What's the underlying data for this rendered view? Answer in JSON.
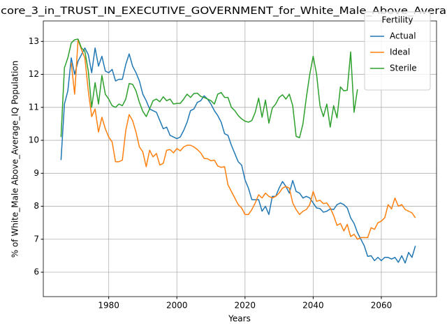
{
  "chart_data": {
    "type": "line",
    "title": "core_3_in_TRUST_IN_EXECUTIVE_GOVERNMENT_for_White_Male_Above_Avera",
    "xlabel": "Years",
    "ylabel": "% of White_Male Above_Average_IQ Population",
    "x": [
      1966,
      1967,
      1968,
      1969,
      1970,
      1971,
      1972,
      1973,
      1974,
      1975,
      1976,
      1977,
      1978,
      1979,
      1980,
      1981,
      1982,
      1983,
      1984,
      1985,
      1986,
      1987,
      1988,
      1989,
      1990,
      1991,
      1992,
      1993,
      1994,
      1995,
      1996,
      1997,
      1998,
      1999,
      2000,
      2001,
      2002,
      2003,
      2004,
      2005,
      2006,
      2007,
      2008,
      2009,
      2010,
      2011,
      2012,
      2013,
      2014,
      2015,
      2016,
      2017,
      2018,
      2019,
      2020,
      2021,
      2022,
      2023,
      2024,
      2025,
      2026,
      2027,
      2028,
      2029,
      2030,
      2031,
      2032,
      2033,
      2034,
      2035,
      2036,
      2037,
      2038,
      2039,
      2040,
      2041,
      2042,
      2043,
      2044,
      2045,
      2046,
      2047,
      2048,
      2049,
      2050,
      2051,
      2052,
      2053,
      2054,
      2055,
      2056,
      2057,
      2058,
      2059,
      2060,
      2061,
      2062,
      2063,
      2064,
      2065,
      2066,
      2067,
      2068,
      2069,
      2070
    ],
    "series": [
      {
        "name": "Actual",
        "color": "#1f77b4",
        "values": [
          9.4,
          11.1,
          11.5,
          12.5,
          12.0,
          12.4,
          12.6,
          12.8,
          12.6,
          12.05,
          12.8,
          12.25,
          12.55,
          12.1,
          12.05,
          12.15,
          11.8,
          11.85,
          11.85,
          12.3,
          12.62,
          12.25,
          12.05,
          11.8,
          11.4,
          11.2,
          10.95,
          10.9,
          10.85,
          10.6,
          10.35,
          10.4,
          10.15,
          10.1,
          10.05,
          10.1,
          10.3,
          10.55,
          10.9,
          10.95,
          11.15,
          11.2,
          11.35,
          11.25,
          11.1,
          10.9,
          10.75,
          10.55,
          10.2,
          10.15,
          9.85,
          9.6,
          9.35,
          9.25,
          8.8,
          8.55,
          8.2,
          8.2,
          8.2,
          7.85,
          8.0,
          7.75,
          8.3,
          8.3,
          8.55,
          8.75,
          8.6,
          8.4,
          8.78,
          8.45,
          8.4,
          8.25,
          8.3,
          8.25,
          8.1,
          7.95,
          7.93,
          7.82,
          7.85,
          7.92,
          7.9,
          8.05,
          8.1,
          8.05,
          7.95,
          7.65,
          7.48,
          7.2,
          7.0,
          6.8,
          6.48,
          6.5,
          6.35,
          6.45,
          6.35,
          6.45,
          6.45,
          6.4,
          6.45,
          6.3,
          6.5,
          6.28,
          6.6,
          6.45,
          6.8
        ]
      },
      {
        "name": "Ideal",
        "color": "#ff7f0e",
        "values": [
          null,
          null,
          null,
          12.35,
          11.4,
          13.05,
          12.75,
          12.5,
          11.5,
          10.72,
          10.95,
          10.25,
          10.7,
          10.35,
          10.1,
          9.95,
          9.35,
          9.35,
          9.4,
          10.3,
          10.78,
          10.6,
          10.25,
          9.8,
          9.65,
          9.2,
          9.7,
          9.5,
          9.6,
          9.25,
          9.3,
          9.7,
          9.72,
          9.62,
          9.75,
          9.68,
          9.8,
          9.85,
          9.85,
          9.8,
          9.72,
          9.62,
          9.45,
          9.44,
          9.38,
          9.4,
          9.22,
          9.18,
          9.2,
          8.65,
          8.45,
          8.25,
          8.05,
          7.95,
          7.75,
          7.75,
          7.9,
          8.1,
          8.35,
          8.25,
          8.4,
          8.3,
          8.25,
          8.3,
          8.4,
          8.55,
          8.6,
          8.55,
          8.1,
          7.9,
          7.75,
          7.85,
          7.9,
          8.05,
          8.45,
          8.15,
          8.18,
          8.08,
          8.1,
          7.95,
          7.72,
          7.42,
          7.48,
          7.25,
          7.45,
          7.08,
          7.15,
          7.0,
          7.05,
          7.05,
          7.05,
          7.35,
          7.3,
          7.5,
          7.55,
          7.65,
          8.05,
          7.92,
          8.25,
          8.0,
          8.05,
          7.9,
          7.85,
          7.8,
          7.65
        ]
      },
      {
        "name": "Sterile",
        "color": "#2ca02c",
        "values": [
          10.1,
          12.2,
          12.5,
          12.95,
          13.05,
          13.07,
          12.8,
          12.7,
          12.1,
          11.0,
          11.75,
          11.1,
          11.97,
          11.4,
          11.25,
          11.05,
          11.0,
          11.1,
          11.05,
          11.25,
          11.72,
          11.7,
          11.5,
          11.15,
          10.88,
          10.72,
          10.95,
          11.2,
          11.25,
          11.17,
          11.32,
          11.2,
          11.25,
          11.1,
          11.12,
          11.12,
          11.25,
          11.4,
          11.3,
          11.42,
          11.43,
          11.33,
          11.3,
          11.25,
          11.2,
          11.1,
          11.4,
          11.45,
          11.3,
          11.3,
          11.0,
          10.9,
          10.75,
          10.65,
          10.58,
          10.55,
          10.6,
          10.85,
          11.28,
          10.7,
          11.22,
          10.52,
          10.98,
          11.1,
          11.3,
          11.38,
          11.25,
          11.4,
          11.05,
          10.12,
          10.08,
          10.5,
          11.3,
          12.0,
          12.55,
          12.0,
          11.05,
          10.72,
          11.1,
          10.4,
          11.05,
          10.68,
          11.62,
          11.5,
          11.52,
          12.68,
          10.85,
          11.55,
          null,
          null,
          null,
          null,
          null,
          null,
          null,
          null,
          null,
          null,
          null,
          null,
          null,
          null,
          null,
          null,
          null
        ]
      }
    ],
    "xlim": [
      1960.8,
      2076.2
    ],
    "xticks": [
      1980,
      2000,
      2020,
      2040,
      2060
    ],
    "ylim": [
      5.26,
      13.62
    ],
    "yticks": [
      6,
      7,
      8,
      9,
      10,
      11,
      12,
      13
    ],
    "grid": true,
    "legend_title": "Fertility",
    "legend_position": "upper right"
  }
}
